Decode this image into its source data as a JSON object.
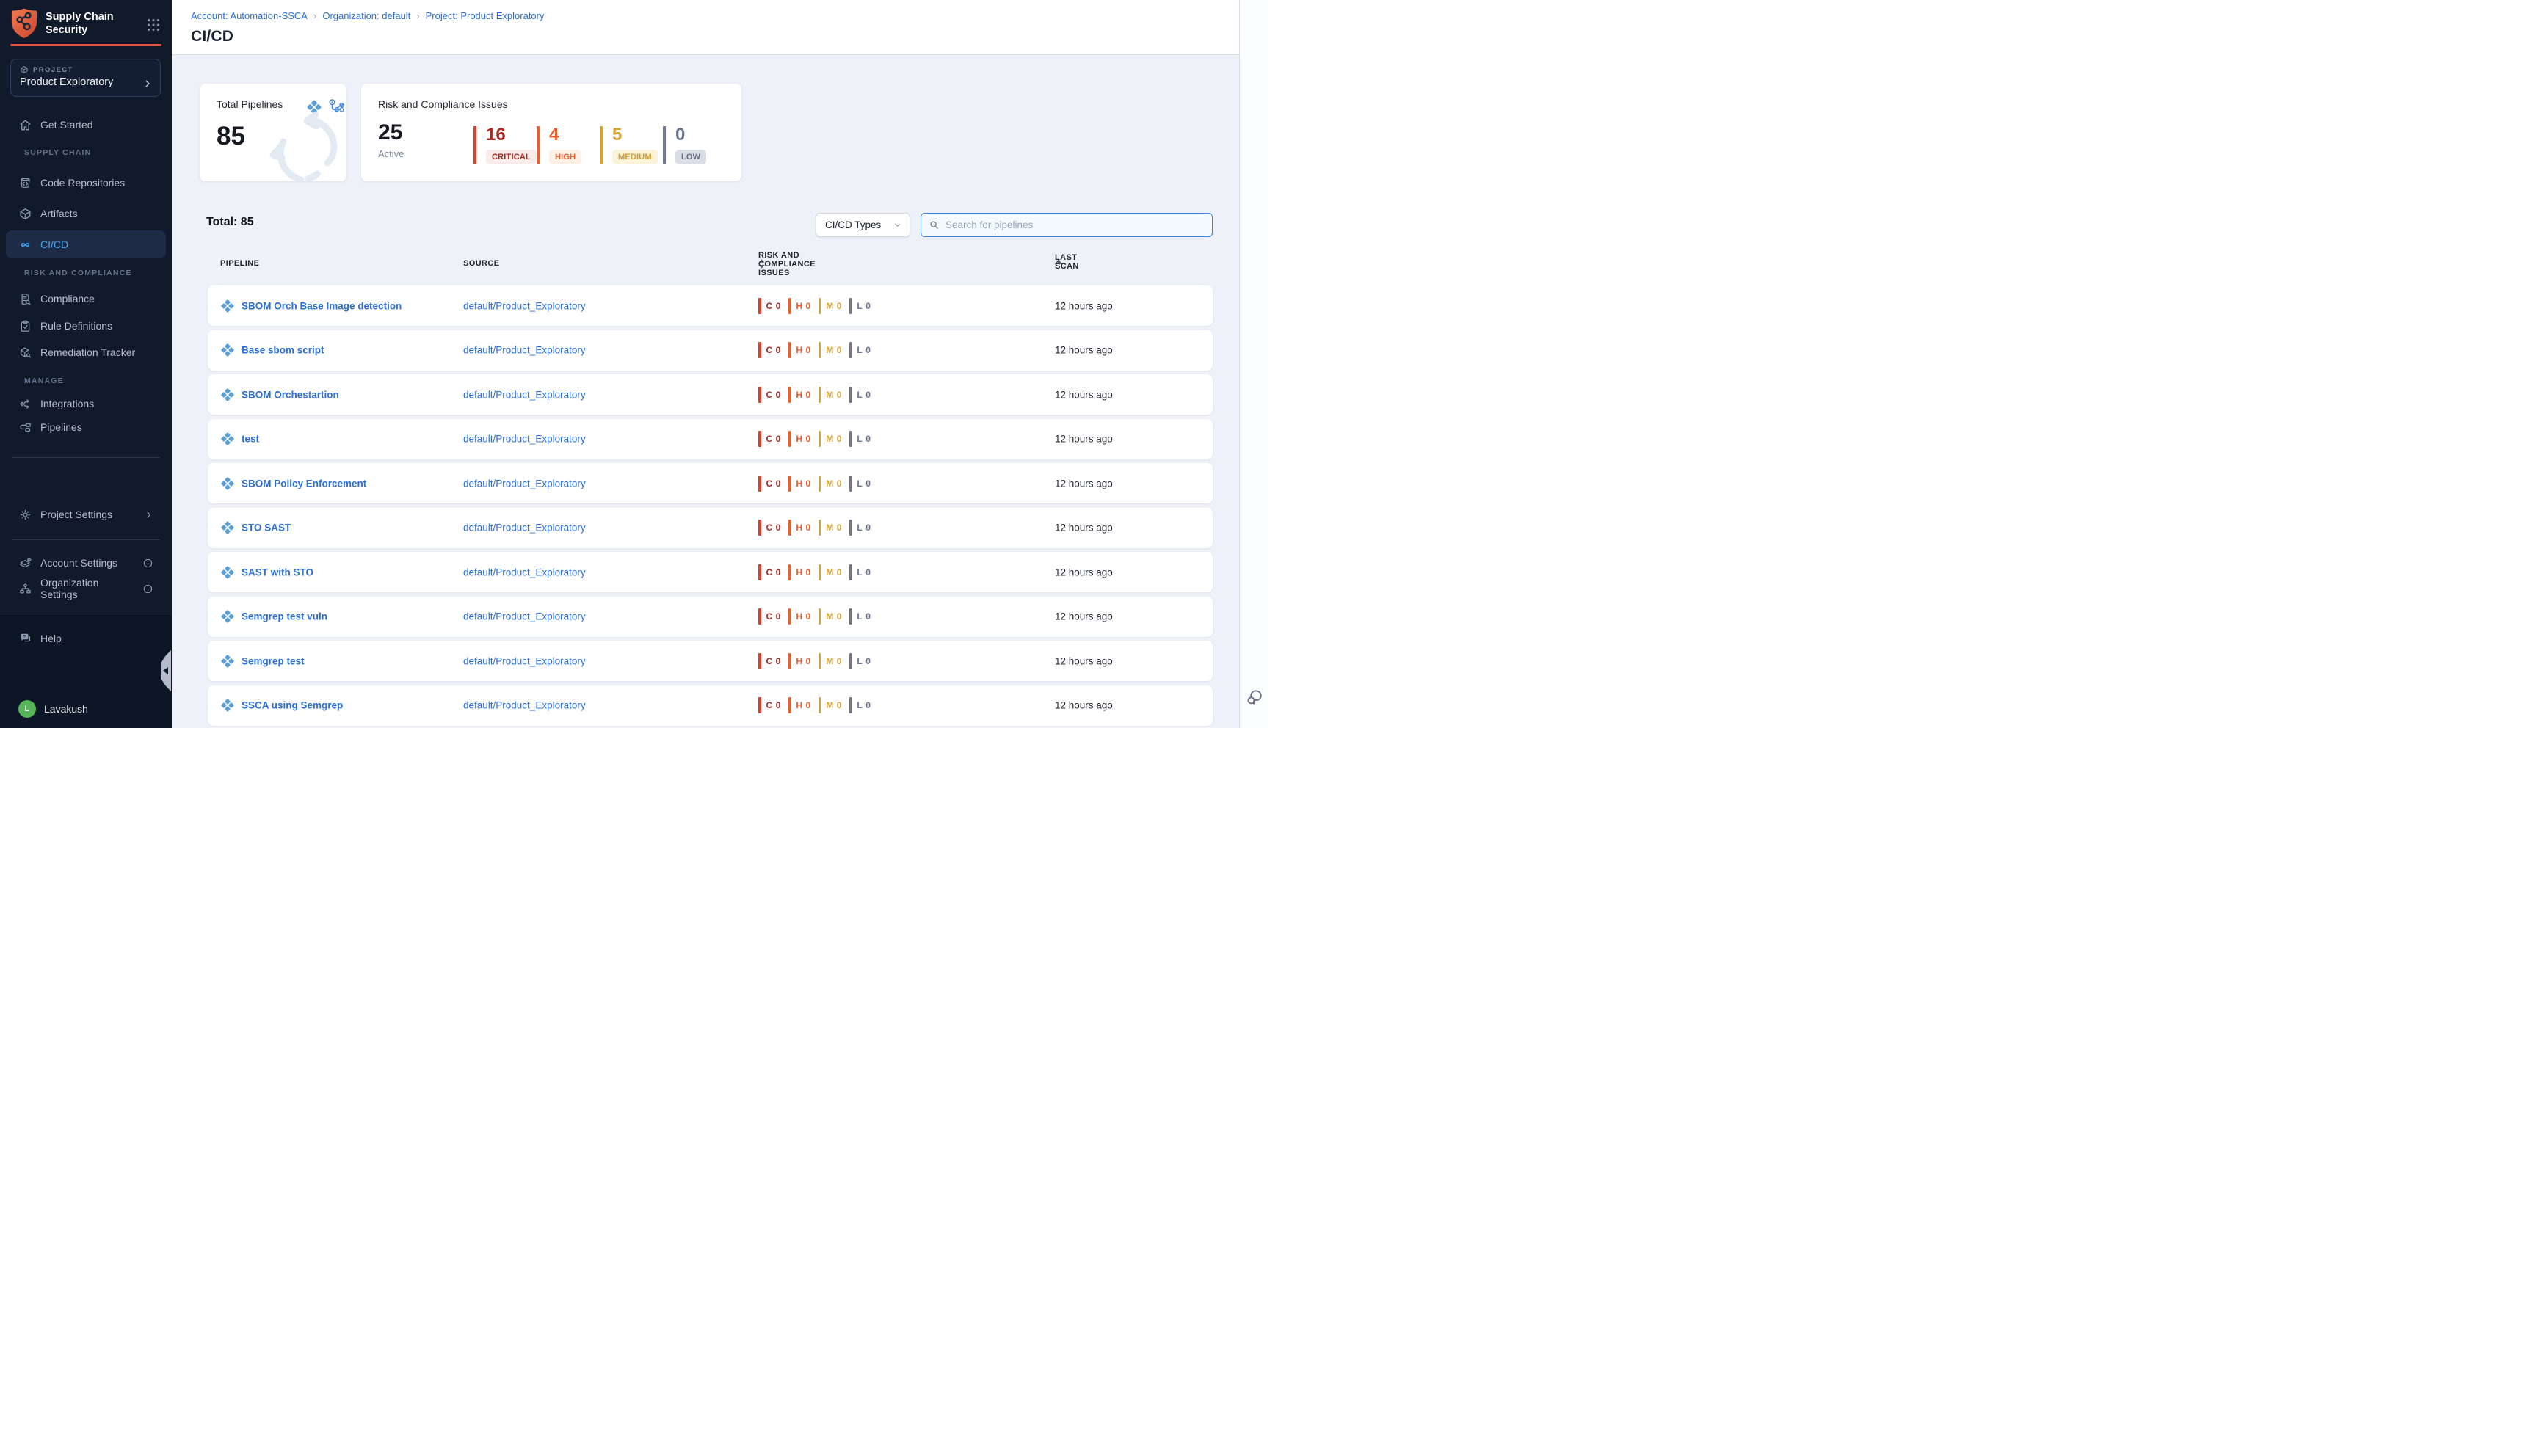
{
  "app": {
    "title": "Supply Chain Security"
  },
  "colors": {
    "accent_orange": "#e8563f",
    "link_blue": "#2c6fd6",
    "sidebar_active_blue": "#41a7f5",
    "critical": "#d9432e",
    "high": "#ea5f2d",
    "medium": "#d8a233",
    "low": "#6d7590",
    "avatar_green": "#56b556",
    "pipeline_icon_blue": "#5b9fd8"
  },
  "icons": {
    "logo": "shield-network",
    "module_switcher": "nine-dot-grid",
    "project": "cube",
    "get_started": "home",
    "code_repositories": "code-bucket",
    "artifacts": "cube",
    "cicd": "infinity",
    "compliance": "document-magnifier",
    "rule_definitions": "clipboard-check",
    "remediation_tracker": "box-wrench",
    "integrations": "node-arrows",
    "pipelines": "pipeline-nodes",
    "project_settings": "gear",
    "account_settings": "layers-gear",
    "organization_settings": "org-gear",
    "help": "chat-question",
    "search": "magnifier",
    "sort_both": "up-down-triangles",
    "sort_asc": "up-triangle",
    "row_pipeline": "blue-diamond-grid",
    "rail_chat": "chat-bubbles"
  },
  "sidebar": {
    "project": {
      "eyebrow": "PROJECT",
      "name": "Product Exploratory"
    },
    "top_item": {
      "label": "Get Started"
    },
    "sections": [
      {
        "label": "SUPPLY CHAIN",
        "items": [
          {
            "label": "Code Repositories"
          },
          {
            "label": "Artifacts"
          },
          {
            "label": "CI/CD",
            "active": true
          }
        ]
      },
      {
        "label": "RISK AND COMPLIANCE",
        "items": [
          {
            "label": "Compliance"
          },
          {
            "label": "Rule Definitions"
          },
          {
            "label": "Remediation Tracker"
          }
        ]
      },
      {
        "label": "MANAGE",
        "items": [
          {
            "label": "Integrations"
          },
          {
            "label": "Pipelines"
          }
        ]
      }
    ],
    "project_settings_label": "Project Settings",
    "account_settings_label": "Account Settings",
    "organization_settings_label": "Organization Settings",
    "help_label": "Help",
    "user": {
      "name": "Lavakush",
      "initial": "L"
    }
  },
  "breadcrumb": [
    "Account: Automation-SSCA",
    "Organization: default",
    "Project: Product Exploratory"
  ],
  "page": {
    "title": "CI/CD"
  },
  "cards": {
    "total_pipelines": {
      "title": "Total Pipelines",
      "value": "85"
    },
    "risk": {
      "title": "Risk and Compliance Issues",
      "active": {
        "value": "25",
        "label": "Active"
      },
      "severities": [
        {
          "label": "CRITICAL",
          "value": "16",
          "number_color": "#ac2b23",
          "bar_color": "#d9432e",
          "badge_bg": "#f8ecea",
          "badge_text": "#a42a22"
        },
        {
          "label": "HIGH",
          "value": "4",
          "number_color": "#e4602e",
          "bar_color": "#ea5f2d",
          "badge_bg": "#fdf0e4",
          "badge_text": "#e4602e"
        },
        {
          "label": "MEDIUM",
          "value": "5",
          "number_color": "#d8a233",
          "bar_color": "#d8a233",
          "badge_bg": "#fbf3da",
          "badge_text": "#cf9a2d"
        },
        {
          "label": "LOW",
          "value": "0",
          "number_color": "#6d7590",
          "bar_color": "#6d7590",
          "badge_bg": "#dadde6",
          "badge_text": "#60687f"
        }
      ]
    }
  },
  "toolbar": {
    "total_label": "Total: 85",
    "type_filter_label": "CI/CD Types",
    "search_placeholder": "Search for pipelines"
  },
  "table": {
    "columns": [
      "PIPELINE",
      "SOURCE",
      "RISK AND COMPLIANCE ISSUES",
      "LAST SCAN"
    ],
    "sort": {
      "risk_column": "both",
      "last_scan_column": "asc"
    },
    "issue_severities": [
      {
        "letter": "C",
        "letter_color": "#a42a22",
        "bar_color": "#d9432e"
      },
      {
        "letter": "H",
        "letter_color": "#e4602e",
        "bar_color": "#ea5f2d"
      },
      {
        "letter": "M",
        "letter_color": "#d8a233",
        "bar_color": "#d8a233"
      },
      {
        "letter": "L",
        "letter_color": "#6d7590",
        "bar_color": "#6d7590"
      }
    ],
    "rows": [
      {
        "name": "SBOM Orch Base Image detection",
        "source": "default/Product_Exploratory",
        "issue_counts": [
          "0",
          "0",
          "0",
          "0"
        ],
        "last_scan": "12 hours ago"
      },
      {
        "name": "Base sbom script",
        "source": "default/Product_Exploratory",
        "issue_counts": [
          "0",
          "0",
          "0",
          "0"
        ],
        "last_scan": "12 hours ago"
      },
      {
        "name": "SBOM Orchestartion",
        "source": "default/Product_Exploratory",
        "issue_counts": [
          "0",
          "0",
          "0",
          "0"
        ],
        "last_scan": "12 hours ago"
      },
      {
        "name": "test",
        "source": "default/Product_Exploratory",
        "issue_counts": [
          "0",
          "0",
          "0",
          "0"
        ],
        "last_scan": "12 hours ago"
      },
      {
        "name": "SBOM Policy Enforcement",
        "source": "default/Product_Exploratory",
        "issue_counts": [
          "0",
          "0",
          "0",
          "0"
        ],
        "last_scan": "12 hours ago"
      },
      {
        "name": "STO SAST",
        "source": "default/Product_Exploratory",
        "issue_counts": [
          "0",
          "0",
          "0",
          "0"
        ],
        "last_scan": "12 hours ago"
      },
      {
        "name": "SAST with STO",
        "source": "default/Product_Exploratory",
        "issue_counts": [
          "0",
          "0",
          "0",
          "0"
        ],
        "last_scan": "12 hours ago"
      },
      {
        "name": "Semgrep test vuln",
        "source": "default/Product_Exploratory",
        "issue_counts": [
          "0",
          "0",
          "0",
          "0"
        ],
        "last_scan": "12 hours ago"
      },
      {
        "name": "Semgrep test",
        "source": "default/Product_Exploratory",
        "issue_counts": [
          "0",
          "0",
          "0",
          "0"
        ],
        "last_scan": "12 hours ago"
      },
      {
        "name": "SSCA using Semgrep",
        "source": "default/Product_Exploratory",
        "issue_counts": [
          "0",
          "0",
          "0",
          "0"
        ],
        "last_scan": "12 hours ago"
      }
    ]
  }
}
